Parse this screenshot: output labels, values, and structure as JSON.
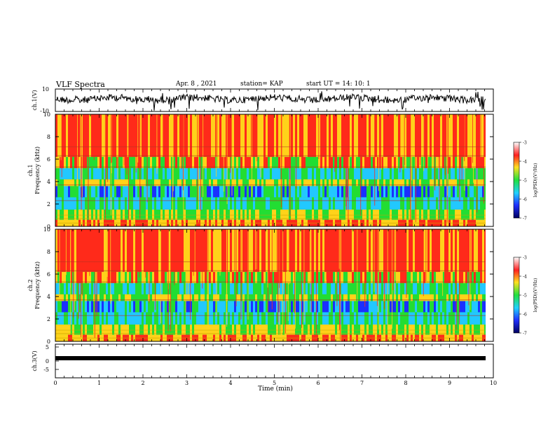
{
  "header": {
    "title": "VLF  Spectra",
    "date": "Apr. 8   , 2021",
    "station": "station= KAP",
    "start": "start  UT  =    14: 10: 1"
  },
  "chart_data": [
    {
      "type": "line",
      "ylabel": "ch.1(V)",
      "ylim": [
        -10,
        10
      ],
      "ytick_labels": [
        "10",
        "-10"
      ],
      "xlim": [
        0,
        10
      ],
      "description_note": "waveform trace, dense noise around ~3 V"
    },
    {
      "type": "heatmap",
      "ylabel_top": "ch.1",
      "ylabel": "Frequency  (kHz)",
      "ylim": [
        0,
        10
      ],
      "ytick_labels": [
        "0",
        "2",
        "4",
        "6",
        "8",
        "10"
      ],
      "xlim": [
        0,
        10
      ],
      "colorbar": {
        "label": "log(PSD)(V²/Hz)",
        "ticks": [
          "-3",
          "-4",
          "-5",
          "-6",
          "-7"
        ],
        "range": [
          -7,
          -3
        ]
      }
    },
    {
      "type": "heatmap",
      "ylabel_top": "ch.2",
      "ylabel": "Frequency  (kHz)",
      "ylim": [
        0,
        10
      ],
      "ytick_labels": [
        "0",
        "2",
        "4",
        "6",
        "8",
        "10"
      ],
      "xlim": [
        0,
        10
      ],
      "colorbar": {
        "label": "log(PSD)(V²/Hz)",
        "ticks": [
          "-3",
          "-4",
          "-5",
          "-6",
          "-7"
        ],
        "range": [
          -7,
          -3
        ]
      }
    },
    {
      "type": "line",
      "ylabel": "ch.3(V)",
      "ylim": [
        -5,
        5
      ],
      "ytick_labels": [
        "5",
        "0",
        "-5"
      ],
      "xlabel": "Time  (min)",
      "xlim": [
        0,
        10
      ],
      "xtick_labels": [
        "0",
        "1",
        "2",
        "3",
        "4",
        "5",
        "6",
        "7",
        "8",
        "9",
        "10"
      ]
    }
  ],
  "colors": {
    "hot": "#ff2a1a",
    "warm": "#ffd21a",
    "mid": "#22dd33",
    "cool": "#22c8ff",
    "cold": "#1a30ff"
  }
}
